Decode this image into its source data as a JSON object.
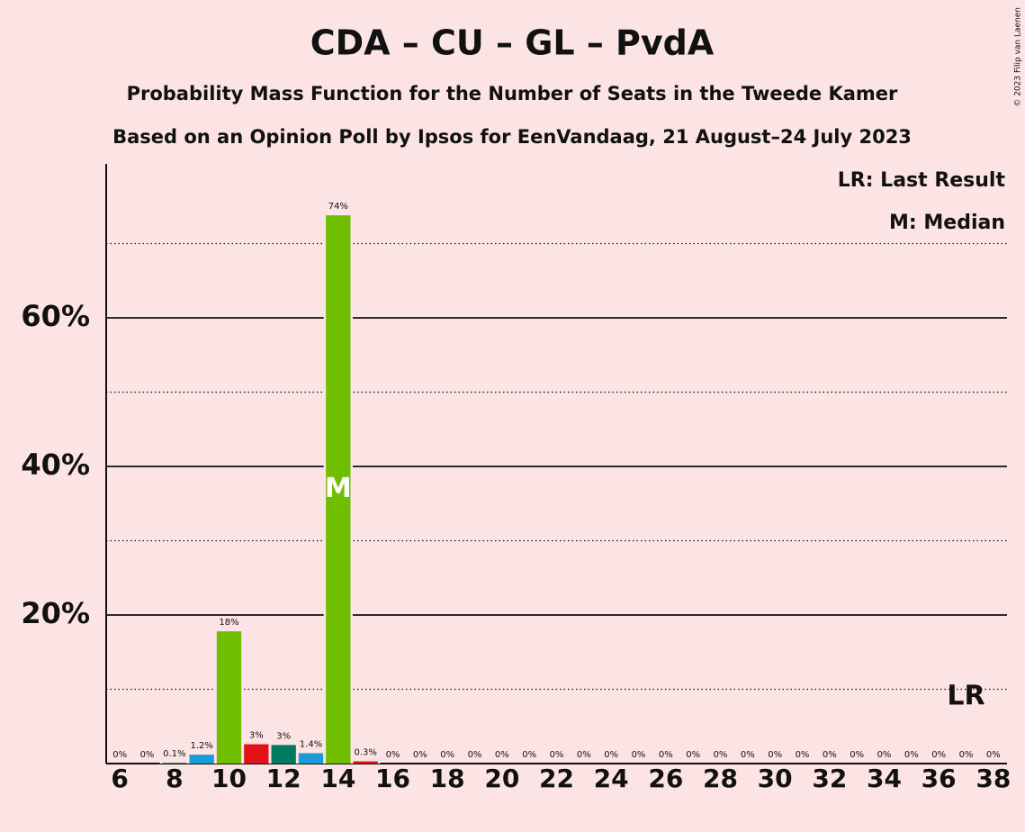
{
  "chart_data": {
    "type": "bar",
    "title": "CDA – CU – GL – PvdA",
    "subtitle": "Probability Mass Function for the Number of Seats in the Tweede Kamer",
    "subtitle2": "Based on an Opinion Poll by Ipsos for EenVandaag, 21 August–24 July 2023",
    "copyright": "© 2023 Filip van Laenen",
    "legend": [
      "LR: Last Result",
      "M: Median"
    ],
    "x": [
      6,
      7,
      8,
      9,
      10,
      11,
      12,
      13,
      14,
      15,
      16,
      17,
      18,
      19,
      20,
      21,
      22,
      23,
      24,
      25,
      26,
      27,
      28,
      29,
      30,
      31,
      32,
      33,
      34,
      35,
      36,
      37,
      38
    ],
    "values": [
      0,
      0,
      0.1,
      1.2,
      17.8,
      2.6,
      2.5,
      1.4,
      73.8,
      0.3,
      0,
      0,
      0,
      0,
      0,
      0,
      0,
      0,
      0,
      0,
      0,
      0,
      0,
      0,
      0,
      0,
      0,
      0,
      0,
      0,
      0,
      0,
      0
    ],
    "value_labels": [
      "0%",
      "0%",
      "0.1%",
      "1.2%",
      "18%",
      "3%",
      "3%",
      "1.4%",
      "74%",
      "0.3%",
      "0%",
      "0%",
      "0%",
      "0%",
      "0%",
      "0%",
      "0%",
      "0%",
      "0%",
      "0%",
      "0%",
      "0%",
      "0%",
      "0%",
      "0%",
      "0%",
      "0%",
      "0%",
      "0%",
      "0%",
      "0%",
      "0%",
      "0%"
    ],
    "colors": [
      "#6fbe00",
      "#e3101a",
      "#007b5f",
      "#1b9ad8",
      "#6fbe00",
      "#e3101a",
      "#007b5f",
      "#1b9ad8",
      "#6fbe00",
      "#e3101a",
      "#007b5f",
      "#1b9ad8",
      "#6fbe00",
      "#e3101a",
      "#007b5f",
      "#1b9ad8",
      "#6fbe00",
      "#e3101a",
      "#007b5f",
      "#1b9ad8",
      "#6fbe00",
      "#e3101a",
      "#007b5f",
      "#1b9ad8",
      "#6fbe00",
      "#e3101a",
      "#007b5f",
      "#1b9ad8",
      "#6fbe00",
      "#e3101a",
      "#007b5f",
      "#1b9ad8",
      "#6fbe00"
    ],
    "xlim": [
      5.5,
      38.5
    ],
    "xticks": [
      6,
      8,
      10,
      12,
      14,
      16,
      18,
      20,
      22,
      24,
      26,
      28,
      30,
      32,
      34,
      36,
      38
    ],
    "ylim": [
      0,
      80
    ],
    "yticks": [
      {
        "value": 20,
        "label": "20%"
      },
      {
        "value": 40,
        "label": "40%"
      },
      {
        "value": 60,
        "label": "60%"
      }
    ],
    "minor_yticks": [
      10,
      30,
      50,
      70
    ],
    "median": {
      "x": 14,
      "label": "M"
    },
    "last_result": {
      "x": 37,
      "label": "LR"
    }
  }
}
